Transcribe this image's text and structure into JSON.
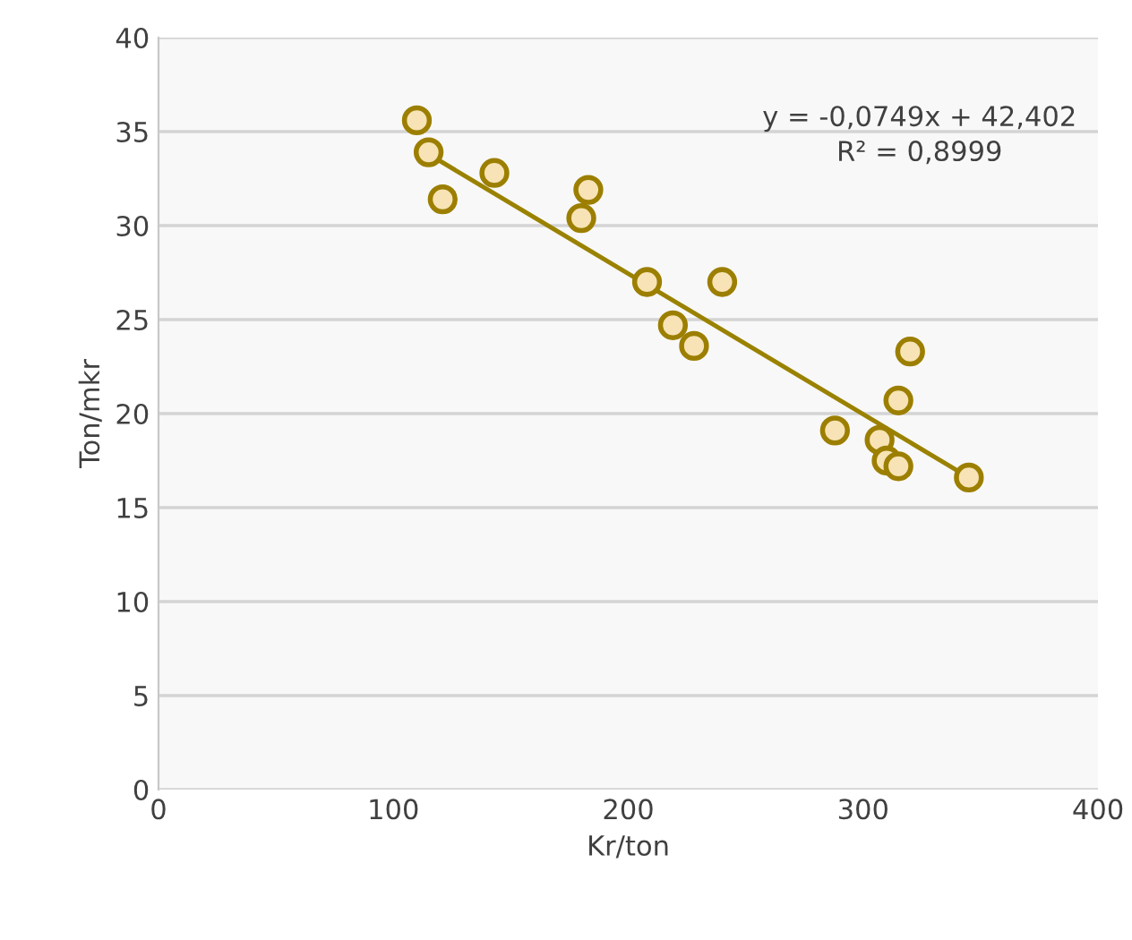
{
  "chart_data": {
    "type": "scatter",
    "xlabel": "Kr/ton",
    "ylabel": "Ton/mkr",
    "series": [
      {
        "color": "#f7e3b5",
        "marker": "circle",
        "x": [
          110,
          115,
          121,
          143,
          183,
          180,
          208,
          240,
          219,
          228,
          288,
          307,
          310,
          315,
          315,
          320,
          345
        ],
        "values": [
          35.6,
          33.9,
          31.4,
          32.8,
          31.9,
          30.4,
          27.0,
          27.0,
          24.7,
          23.6,
          19.1,
          18.6,
          17.5,
          17.2,
          20.7,
          23.3,
          16.6
        ]
      },
      {
        "type": "line",
        "marker": "none",
        "color": "#9a8200",
        "x": [
          115,
          345
        ],
        "values": [
          33.8,
          16.6
        ]
      }
    ],
    "annotations": [
      "y = -0,0749x + 42,402\nR² = 0,8999"
    ],
    "xlim": [
      0,
      400
    ],
    "xticks": [
      0,
      100,
      200,
      300,
      400
    ],
    "ylim": [
      0,
      40
    ],
    "yticks": [
      0,
      5,
      10,
      15,
      20,
      25,
      30,
      35,
      40
    ],
    "grid": "y",
    "legend": false
  }
}
